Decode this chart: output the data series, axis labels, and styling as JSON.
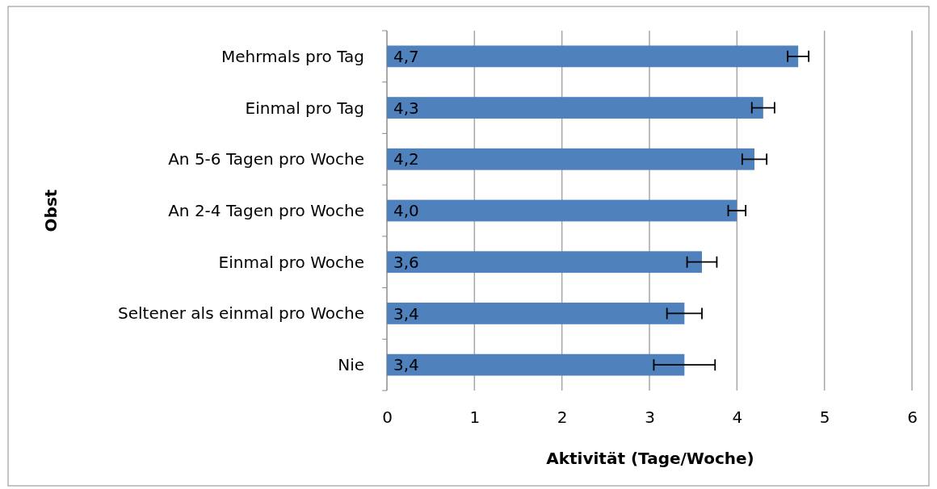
{
  "chart_data": {
    "type": "bar",
    "orientation": "horizontal",
    "xlabel": "Aktivität (Tage/Woche)",
    "ylabel": "Obst",
    "categories": [
      "Mehrmals pro Tag",
      "Einmal pro Tag",
      "An 5-6 Tagen pro Woche",
      "An 2-4 Tagen pro Woche",
      "Einmal pro Woche",
      "Seltener als einmal pro Woche",
      "Nie"
    ],
    "values": [
      4.7,
      4.3,
      4.2,
      4.0,
      3.6,
      3.4,
      3.4
    ],
    "value_labels": [
      "4,7",
      "4,3",
      "4,2",
      "4,0",
      "3,6",
      "3,4",
      "3,4"
    ],
    "errors": [
      0.12,
      0.13,
      0.14,
      0.1,
      0.17,
      0.2,
      0.35
    ],
    "color": "#4f81bd",
    "xlim": [
      0,
      6
    ],
    "xticks": [
      0,
      1,
      2,
      3,
      4,
      5,
      6
    ],
    "grid": "x"
  }
}
